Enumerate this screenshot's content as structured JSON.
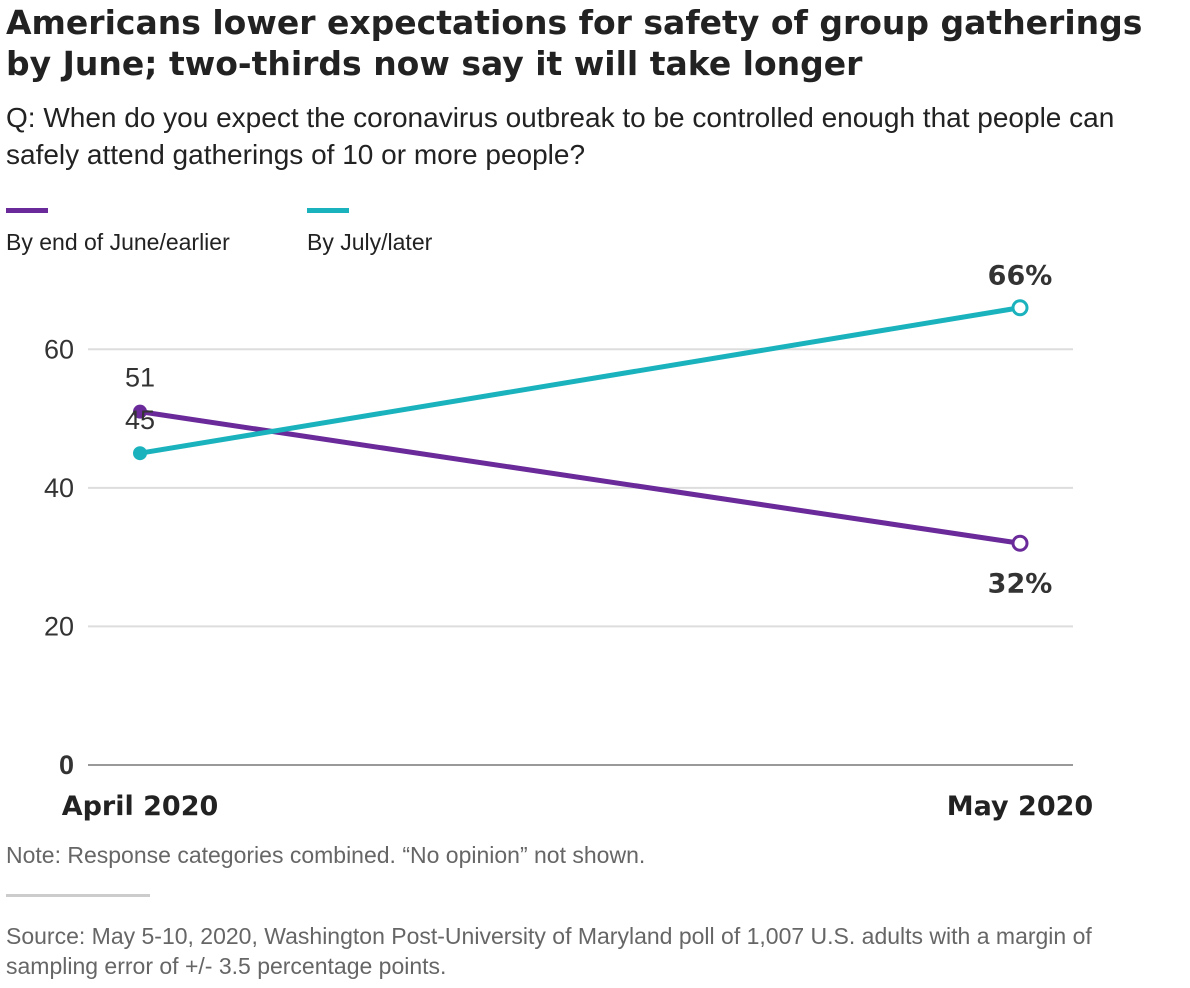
{
  "title": "Americans lower expectations for safety of group gatherings by June; two-thirds now say it will take longer",
  "subtitle": "Q: When do you expect the coronavirus outbreak to be controlled enough that people can safely attend gatherings of 10 or more people?",
  "note": "Note: Response categories combined. “No opinion” not shown.",
  "source": "Source: May 5-10, 2020, Washington Post-University of Maryland poll of 1,007 U.S. adults with a margin of sampling error of +/- 3.5 percentage points.",
  "colors": {
    "june": "#6a2a9a",
    "july": "#1ab3bd",
    "grid": "#dddddd",
    "axis": "#999999"
  },
  "chart_data": {
    "type": "line",
    "title": "Americans lower expectations for safety of group gatherings by June; two-thirds now say it will take longer",
    "xlabel": "",
    "ylabel": "",
    "categories": [
      "April 2020",
      "May 2020"
    ],
    "ylim": [
      0,
      70
    ],
    "yticks": [
      0,
      20,
      40,
      60
    ],
    "grid": true,
    "legend": "top-left",
    "series": [
      {
        "name": "By end of June/earlier",
        "color": "#6a2a9a",
        "values": [
          51,
          32
        ],
        "labels": [
          "51",
          "32%"
        ]
      },
      {
        "name": "By July/later",
        "color": "#1ab3bd",
        "values": [
          45,
          66
        ],
        "labels": [
          "45",
          "66%"
        ]
      }
    ]
  }
}
